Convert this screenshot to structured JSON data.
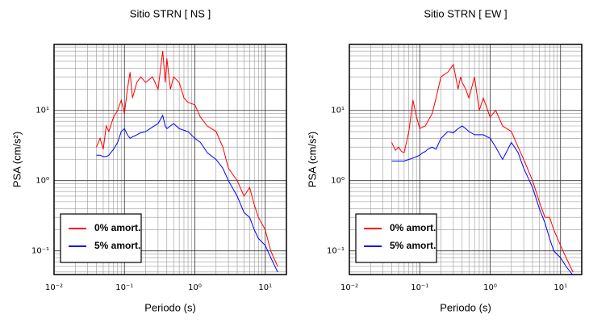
{
  "chart_data": [
    {
      "type": "line",
      "title": "Sitio STRN [ NS ]",
      "x_label": "Periodo (s)",
      "y_label": "PSA (cm/s²)",
      "x": [
        0.04,
        0.045,
        0.05,
        0.055,
        0.06,
        0.07,
        0.08,
        0.09,
        0.1,
        0.11,
        0.12,
        0.13,
        0.15,
        0.17,
        0.2,
        0.25,
        0.3,
        0.35,
        0.38,
        0.4,
        0.45,
        0.5,
        0.6,
        0.7,
        0.8,
        1,
        1.2,
        1.5,
        2,
        2.5,
        3,
        4,
        5,
        6,
        7,
        8,
        10,
        12,
        15
      ],
      "series": [
        {
          "name": "0% amort.",
          "color": "#ff0000",
          "values": [
            3,
            4,
            2.8,
            6,
            5,
            8,
            10,
            14,
            9,
            20,
            35,
            15,
            25,
            30,
            25,
            30,
            20,
            70,
            25,
            55,
            20,
            30,
            25,
            15,
            13,
            12,
            8,
            6,
            5,
            3,
            1.5,
            1,
            0.6,
            0.8,
            0.45,
            0.3,
            0.2,
            0.1,
            0.06
          ]
        },
        {
          "name": "5% amort.",
          "color": "#0000ff",
          "values": [
            2.3,
            2.3,
            2.2,
            2.2,
            2.3,
            2.8,
            3.5,
            5,
            5.5,
            4.5,
            4,
            4.2,
            4.5,
            4.8,
            5,
            5.8,
            6.5,
            8.5,
            6,
            5.5,
            6,
            6.5,
            5.5,
            5.2,
            5,
            4,
            3.5,
            2.5,
            2,
            1.5,
            1,
            0.6,
            0.35,
            0.3,
            0.2,
            0.15,
            0.12,
            0.08,
            0.05
          ]
        }
      ],
      "log_x": true,
      "log_y": true,
      "xlim": [
        0.01,
        20
      ],
      "ylim": [
        0.046,
        87
      ],
      "xticks": [
        {
          "value": 0.01,
          "label": "10⁻²"
        },
        {
          "value": 0.1,
          "label": "10⁻¹"
        },
        {
          "value": 1,
          "label": "10⁰"
        },
        {
          "value": 10,
          "label": "10¹"
        }
      ],
      "yticks": [
        {
          "value": 0.1,
          "label": "10⁻¹"
        },
        {
          "value": 1,
          "label": "10⁰"
        },
        {
          "value": 10,
          "label": "10¹"
        }
      ],
      "minor_xticks": [
        0.02,
        0.03,
        0.04,
        0.05,
        0.06,
        0.07,
        0.08,
        0.09,
        0.2,
        0.3,
        0.4,
        0.5,
        0.6,
        0.7,
        0.8,
        0.9,
        2,
        3,
        4,
        5,
        6,
        7,
        8,
        9
      ],
      "minor_yticks": [
        0.05,
        0.06,
        0.07,
        0.08,
        0.09,
        0.2,
        0.3,
        0.4,
        0.5,
        0.6,
        0.7,
        0.8,
        0.9,
        2,
        3,
        4,
        5,
        6,
        7,
        8,
        9,
        20,
        30,
        40,
        50,
        60,
        70,
        80
      ],
      "grid": true,
      "legend": "lower left"
    },
    {
      "type": "line",
      "title": "Sitio STRN [ EW ]",
      "x_label": "Periodo (s)",
      "y_label": "PSA (cm/s²)",
      "x": [
        0.04,
        0.045,
        0.05,
        0.055,
        0.06,
        0.07,
        0.08,
        0.09,
        0.1,
        0.11,
        0.12,
        0.13,
        0.15,
        0.17,
        0.2,
        0.25,
        0.3,
        0.35,
        0.38,
        0.4,
        0.45,
        0.5,
        0.6,
        0.7,
        0.8,
        1,
        1.2,
        1.5,
        2,
        2.5,
        3,
        4,
        5,
        6,
        7,
        8,
        10,
        12,
        15
      ],
      "series": [
        {
          "name": "0% amort.",
          "color": "#ff0000",
          "values": [
            3.5,
            2.7,
            3,
            2.6,
            2.5,
            5,
            14,
            8,
            5.5,
            5.8,
            6,
            7,
            9,
            15,
            30,
            35,
            45,
            20,
            30,
            25,
            20,
            15,
            30,
            10,
            15,
            8,
            10,
            6,
            5,
            3,
            2,
            1,
            0.5,
            0.3,
            0.3,
            0.2,
            0.12,
            0.08,
            0.05
          ]
        },
        {
          "name": "5% amort.",
          "color": "#0000ff",
          "values": [
            1.9,
            1.9,
            1.9,
            1.9,
            1.9,
            2,
            2.1,
            2.2,
            2.3,
            2.5,
            2.6,
            2.8,
            3,
            2.8,
            4,
            5,
            4.8,
            5.5,
            5.8,
            6,
            5.5,
            5,
            4.5,
            4.5,
            4.5,
            4,
            3,
            2,
            3.5,
            2.5,
            1.5,
            0.8,
            0.4,
            0.25,
            0.15,
            0.1,
            0.08,
            0.06,
            0.045
          ]
        }
      ],
      "log_x": true,
      "log_y": true,
      "xlim": [
        0.01,
        20
      ],
      "ylim": [
        0.046,
        87
      ],
      "xticks": [
        {
          "value": 0.01,
          "label": "10⁻²"
        },
        {
          "value": 0.1,
          "label": "10⁻¹"
        },
        {
          "value": 1,
          "label": "10⁰"
        },
        {
          "value": 10,
          "label": "10¹"
        }
      ],
      "yticks": [
        {
          "value": 0.1,
          "label": "10⁻¹"
        },
        {
          "value": 1,
          "label": "10⁰"
        },
        {
          "value": 10,
          "label": "10¹"
        }
      ],
      "minor_xticks": [
        0.02,
        0.03,
        0.04,
        0.05,
        0.06,
        0.07,
        0.08,
        0.09,
        0.2,
        0.3,
        0.4,
        0.5,
        0.6,
        0.7,
        0.8,
        0.9,
        2,
        3,
        4,
        5,
        6,
        7,
        8,
        9
      ],
      "minor_yticks": [
        0.05,
        0.06,
        0.07,
        0.08,
        0.09,
        0.2,
        0.3,
        0.4,
        0.5,
        0.6,
        0.7,
        0.8,
        0.9,
        2,
        3,
        4,
        5,
        6,
        7,
        8,
        9,
        20,
        30,
        40,
        50,
        60,
        70,
        80
      ],
      "grid": true,
      "legend": "lower left"
    }
  ]
}
